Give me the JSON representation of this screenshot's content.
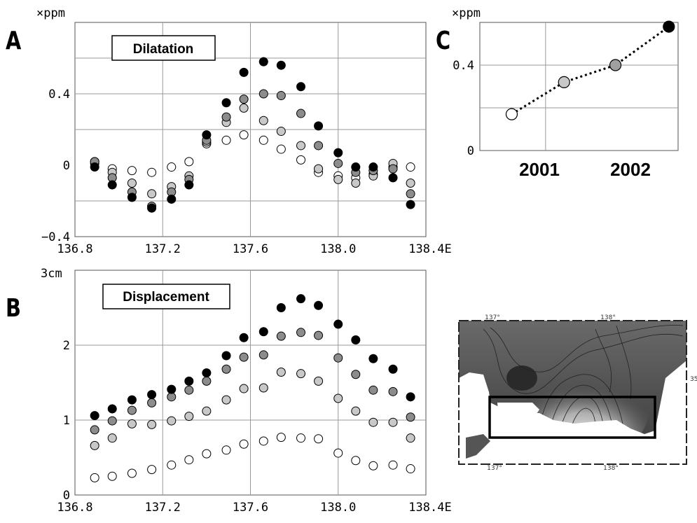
{
  "panels": {
    "a_letter": "A",
    "b_letter": "B",
    "c_letter": "C"
  },
  "colors": {
    "series_1": "#ffffff",
    "series_2": "#c8c8c8",
    "series_3": "#8c8c8c",
    "series_4": "#000000",
    "grid": "#999999",
    "frame": "#555555"
  },
  "chart_data": [
    {
      "id": "A",
      "type": "scatter",
      "title": "Dilatation",
      "unit_label": "×ppm",
      "xlim": [
        136.8,
        138.4
      ],
      "ylim": [
        -0.4,
        0.8
      ],
      "xticks": [
        136.8,
        137.2,
        137.6,
        138.0,
        138.4
      ],
      "xtick_labels": [
        "136.8",
        "137.2",
        "137.6",
        "138.0",
        "138.4E"
      ],
      "ytick_labels": [
        {
          "v": 0.4,
          "t": "0.4"
        },
        {
          "v": 0,
          "t": "0"
        },
        {
          "v": -0.4,
          "t": "−0.4"
        }
      ],
      "ygrid": [
        0.6,
        0.4,
        0.2,
        -0.2
      ],
      "x": [
        136.89,
        136.97,
        137.06,
        137.15,
        137.24,
        137.32,
        137.4,
        137.49,
        137.57,
        137.66,
        137.74,
        137.83,
        137.91,
        138.0,
        138.08,
        138.16,
        138.25,
        138.33
      ],
      "series": [
        {
          "values": [
            0.02,
            -0.02,
            -0.03,
            -0.04,
            -0.01,
            0.02,
            0.12,
            0.14,
            0.17,
            0.14,
            0.09,
            0.03,
            -0.04,
            -0.06,
            -0.07,
            -0.05,
            -0.01,
            -0.01
          ]
        },
        {
          "values": [
            0.01,
            -0.04,
            -0.1,
            -0.16,
            -0.12,
            -0.06,
            0.13,
            0.24,
            0.32,
            0.25,
            0.19,
            0.11,
            -0.02,
            -0.08,
            -0.1,
            -0.06,
            0.01,
            -0.1
          ]
        },
        {
          "values": [
            0.02,
            -0.07,
            -0.15,
            -0.23,
            -0.15,
            -0.08,
            0.14,
            0.27,
            0.37,
            0.4,
            0.39,
            0.29,
            0.11,
            0.01,
            -0.04,
            -0.03,
            -0.02,
            -0.16
          ]
        },
        {
          "values": [
            -0.01,
            -0.11,
            -0.18,
            -0.24,
            -0.19,
            -0.11,
            0.17,
            0.35,
            0.52,
            0.58,
            0.56,
            0.44,
            0.22,
            0.07,
            -0.01,
            -0.01,
            -0.07,
            -0.22
          ]
        }
      ]
    },
    {
      "id": "B",
      "type": "scatter",
      "title": "Displacement",
      "unit_label": "3cm",
      "xlim": [
        136.8,
        138.4
      ],
      "ylim": [
        0,
        3
      ],
      "xticks": [
        136.8,
        137.2,
        137.6,
        138.0,
        138.4
      ],
      "xtick_labels": [
        "136.8",
        "137.2",
        "137.6",
        "138.0",
        "138.4E"
      ],
      "ytick_labels": [
        {
          "v": 0,
          "t": "0"
        },
        {
          "v": 1,
          "t": "1"
        },
        {
          "v": 2,
          "t": "2"
        }
      ],
      "ygrid": [
        1,
        2
      ],
      "x": [
        136.89,
        136.97,
        137.06,
        137.15,
        137.24,
        137.32,
        137.4,
        137.49,
        137.57,
        137.66,
        137.74,
        137.83,
        137.91,
        138.0,
        138.08,
        138.16,
        138.25,
        138.33
      ],
      "series": [
        {
          "values": [
            0.23,
            0.25,
            0.29,
            0.34,
            0.4,
            0.47,
            0.55,
            0.6,
            0.68,
            0.72,
            0.77,
            0.76,
            0.75,
            0.56,
            0.46,
            0.39,
            0.4,
            0.35
          ]
        },
        {
          "values": [
            0.66,
            0.76,
            0.95,
            0.94,
            0.99,
            1.05,
            1.12,
            1.27,
            1.42,
            1.43,
            1.64,
            1.62,
            1.52,
            1.29,
            1.12,
            0.97,
            0.97,
            0.76
          ]
        },
        {
          "values": [
            0.87,
            0.99,
            1.13,
            1.23,
            1.31,
            1.4,
            1.52,
            1.68,
            1.84,
            1.87,
            2.12,
            2.17,
            2.13,
            1.83,
            1.61,
            1.4,
            1.38,
            1.04
          ]
        },
        {
          "values": [
            1.06,
            1.15,
            1.27,
            1.34,
            1.41,
            1.52,
            1.63,
            1.86,
            2.1,
            2.18,
            2.5,
            2.62,
            2.53,
            2.28,
            2.07,
            1.82,
            1.68,
            1.31
          ]
        }
      ]
    },
    {
      "id": "C",
      "type": "line",
      "unit_label": "×ppm",
      "categories": [
        "2001",
        "2002"
      ],
      "ylim": [
        0,
        0.6
      ],
      "ytick_labels": [
        {
          "v": 0.4,
          "t": "0.4"
        },
        {
          "v": 0,
          "t": "0"
        }
      ],
      "ygrid": [
        0.4,
        0.2
      ],
      "x": [
        2000.93,
        2001.44,
        2001.94,
        2002.46
      ],
      "xlim": [
        2000.62,
        2002.55
      ],
      "xgrid": [
        2001.26
      ],
      "points": [
        {
          "x": 2000.93,
          "y": 0.17,
          "fill": "#ffffff"
        },
        {
          "x": 2001.44,
          "y": 0.32,
          "fill": "#c8c8c8"
        },
        {
          "x": 2001.94,
          "y": 0.4,
          "fill": "#a0a0a0"
        },
        {
          "x": 2002.46,
          "y": 0.58,
          "fill": "#000000"
        }
      ]
    }
  ],
  "map": {
    "top_labels": [
      "137°",
      "138°"
    ],
    "bottom_labels": [
      "137°",
      "138°"
    ],
    "right_label": "35°"
  }
}
